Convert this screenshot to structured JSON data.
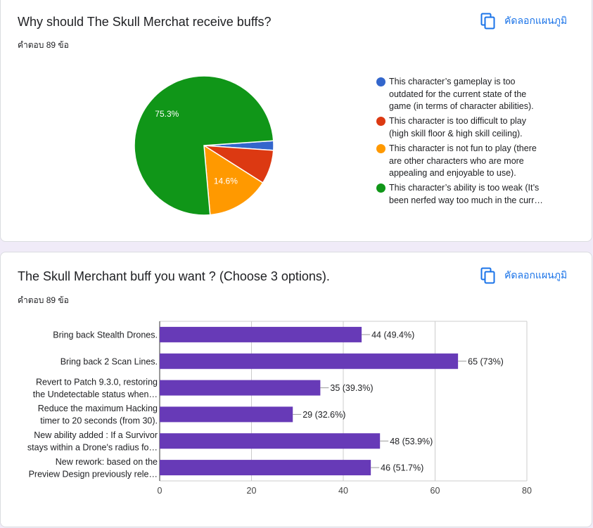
{
  "copy_label": "คัดลอกแผนภูมิ",
  "q1": {
    "title": "Why should The Skull Merchat receive buffs?",
    "responses": "คำตอบ 89 ข้อ"
  },
  "q2": {
    "title": "The Skull Merchant buff you want ? (Choose 3 options).",
    "responses": "คำตอบ 89 ข้อ"
  },
  "chart_data": [
    {
      "type": "pie",
      "title": "Why should The Skull Merchat receive buffs?",
      "labels": [
        "This character's gameplay is too outdated for the current state of the game (in terms of character abilities).",
        "This character is too difficult to play (high skill floor & high skill ceiling).",
        "This character is not fun to play (there are other characters who are more appealing and enjoyable to use).",
        "This character's ability is too weak (It's been nerfed way too much in the curr..."
      ],
      "legend_lines": [
        [
          "This character’s gameplay is too",
          "outdated for the current state of the",
          "game (in terms of character abilities)."
        ],
        [
          "This character is too difficult to play",
          "(high skill floor & high skill ceiling)."
        ],
        [
          "This character is not fun to play (there",
          "are other characters who are more",
          "appealing and enjoyable to use)."
        ],
        [
          "This character’s ability is too weak (It’s",
          "been nerfed way too much in the curr…"
        ]
      ],
      "values": [
        2.2,
        7.9,
        14.6,
        75.3
      ],
      "data_labels": [
        "",
        "",
        "14.6%",
        "75.3%"
      ],
      "colors": [
        "#3366cc",
        "#dc3912",
        "#ff9900",
        "#109618"
      ],
      "legend_position": "right"
    },
    {
      "type": "bar",
      "orientation": "horizontal",
      "title": "The Skull Merchant buff you want ? (Choose 3 options).",
      "categories": [
        [
          "Bring back Stealth Drones."
        ],
        [
          "Bring back 2 Scan Lines."
        ],
        [
          "Revert to Patch 9.3.0, restoring",
          "the Undetectable status when…"
        ],
        [
          "Reduce the maximum Hacking",
          "timer to 20 seconds (from 30)."
        ],
        [
          "New ability added : If a Survivor",
          "stays within a Drone's radius fo…"
        ],
        [
          "New rework: based on the",
          "Preview Design previously rele…"
        ]
      ],
      "values": [
        44,
        65,
        35,
        29,
        48,
        46
      ],
      "data_labels": [
        "44 (49.4%)",
        "65 (73%)",
        "35 (39.3%)",
        "29 (32.6%)",
        "48 (53.9%)",
        "46 (51.7%)"
      ],
      "xlim": [
        0,
        80
      ],
      "xticks": [
        0,
        20,
        40,
        60,
        80
      ],
      "color": "#673ab7",
      "grid": true
    }
  ]
}
